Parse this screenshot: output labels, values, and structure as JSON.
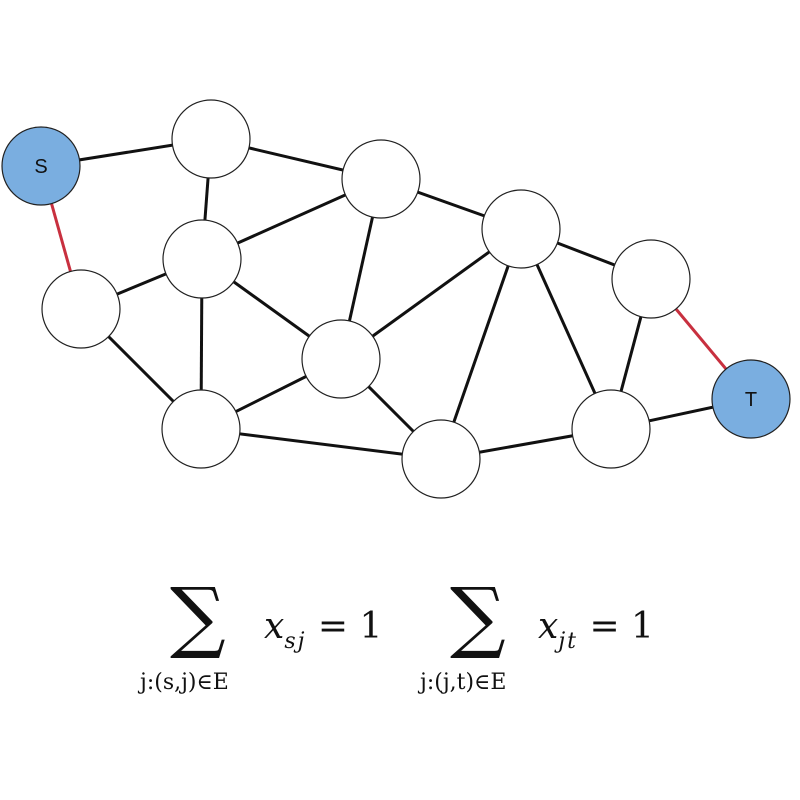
{
  "graph": {
    "nodes": [
      {
        "id": "s",
        "label": "S",
        "style": "terminal"
      },
      {
        "id": "a",
        "label": "",
        "style": "plain"
      },
      {
        "id": "b",
        "label": "",
        "style": "plain"
      },
      {
        "id": "c",
        "label": "",
        "style": "plain"
      },
      {
        "id": "d",
        "label": "",
        "style": "plain"
      },
      {
        "id": "e",
        "label": "",
        "style": "plain"
      },
      {
        "id": "f",
        "label": "",
        "style": "plain"
      },
      {
        "id": "g",
        "label": "",
        "style": "plain"
      },
      {
        "id": "h",
        "label": "",
        "style": "plain"
      },
      {
        "id": "i",
        "label": "",
        "style": "plain"
      },
      {
        "id": "j",
        "label": "",
        "style": "plain"
      },
      {
        "id": "k",
        "label": "",
        "style": "plain"
      },
      {
        "id": "t",
        "label": "T",
        "style": "terminal"
      }
    ],
    "edges": [
      {
        "from": "s",
        "to": "b",
        "highlight": false
      },
      {
        "from": "s",
        "to": "e",
        "highlight": true
      },
      {
        "from": "b",
        "to": "c",
        "highlight": false
      },
      {
        "from": "b",
        "to": "d",
        "highlight": false
      },
      {
        "from": "c",
        "to": "f",
        "highlight": false
      },
      {
        "from": "c",
        "to": "g",
        "highlight": false
      },
      {
        "from": "d",
        "to": "c",
        "highlight": false
      },
      {
        "from": "d",
        "to": "e",
        "highlight": false
      },
      {
        "from": "d",
        "to": "f",
        "highlight": false
      },
      {
        "from": "d",
        "to": "h",
        "highlight": false
      },
      {
        "from": "e",
        "to": "h",
        "highlight": false
      },
      {
        "from": "f",
        "to": "g",
        "highlight": false
      },
      {
        "from": "f",
        "to": "h",
        "highlight": false
      },
      {
        "from": "f",
        "to": "i",
        "highlight": false
      },
      {
        "from": "h",
        "to": "i",
        "highlight": false
      },
      {
        "from": "g",
        "to": "i",
        "highlight": false
      },
      {
        "from": "g",
        "to": "j",
        "highlight": false
      },
      {
        "from": "g",
        "to": "k",
        "highlight": false
      },
      {
        "from": "i",
        "to": "j",
        "highlight": false
      },
      {
        "from": "j",
        "to": "k",
        "highlight": false
      },
      {
        "from": "j",
        "to": "t",
        "highlight": false
      },
      {
        "from": "k",
        "to": "t",
        "highlight": true
      }
    ],
    "colors": {
      "edge": "#111111",
      "highlight_edge": "#c8303f",
      "terminal_fill": "#7aaee0",
      "plain_fill": "#ffffff",
      "node_stroke": "#222222"
    }
  },
  "formula": {
    "left": {
      "subscript_under": "j:(s,j)∈E",
      "variable": "x",
      "index": "sj",
      "rhs": "= 1"
    },
    "right": {
      "subscript_under": "j:(j,t)∈E",
      "variable": "x",
      "index": "jt",
      "rhs": "= 1"
    }
  }
}
